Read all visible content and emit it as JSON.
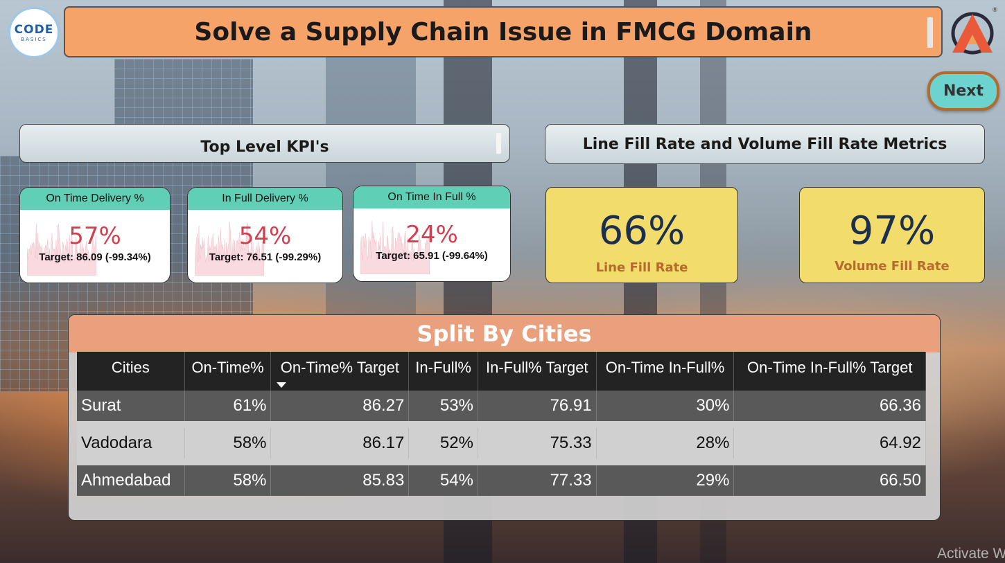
{
  "header": {
    "title": "Solve a Supply Chain Issue in FMCG Domain",
    "logo_left_line1": "CODE",
    "logo_left_line2": "BASICS",
    "logo_right_mark": "®"
  },
  "nav": {
    "next_label": "Next"
  },
  "kpi_section": {
    "title": "Top Level KPI's",
    "cards": [
      {
        "label": "On Time Delivery %",
        "value": "57%",
        "target": "Target: 86.09 (-99.34%)"
      },
      {
        "label": "In Full Delivery %",
        "value": "54%",
        "target": "Target: 76.51 (-99.29%)"
      },
      {
        "label": "On Time In Full %",
        "value": "24%",
        "target": "Target: 65.91 (-99.64%)"
      }
    ]
  },
  "fill_section": {
    "title": "Line Fill Rate and Volume Fill Rate Metrics",
    "cards": [
      {
        "value": "66%",
        "label": "Line Fill Rate"
      },
      {
        "value": "97%",
        "label": "Volume Fill Rate"
      }
    ]
  },
  "cities": {
    "title": "Split By Cities",
    "columns": [
      "Cities",
      "On-Time%",
      "On-Time% Target",
      "In-Full%",
      "In-Full% Target",
      "On-Time In-Full%",
      "On-Time In-Full% Target"
    ],
    "rows": [
      [
        "Surat",
        "61%",
        "86.27",
        "53%",
        "76.91",
        "30%",
        "66.36"
      ],
      [
        "Vadodara",
        "58%",
        "86.17",
        "52%",
        "75.33",
        "28%",
        "64.92"
      ],
      [
        "Ahmedabad",
        "58%",
        "85.83",
        "54%",
        "77.33",
        "29%",
        "66.50"
      ]
    ]
  },
  "watermark": "Activate W",
  "colors": {
    "title_bg": "#f6a36a",
    "kpi_head": "#5fd0b6",
    "kpi_value": "#d2404f",
    "fill_card_bg": "#f1dc6c",
    "fill_value": "#1c2f4f",
    "fill_label": "#b86a2c",
    "next_bg": "#6dd3cf",
    "cities_head": "#eaa07c"
  }
}
